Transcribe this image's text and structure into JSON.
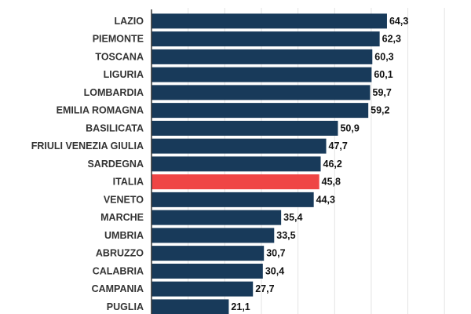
{
  "colors": {
    "bar": "#183a5a",
    "highlight": "#ef4545"
  },
  "chart_data": {
    "type": "bar",
    "orientation": "horizontal",
    "title": "",
    "xlabel": "",
    "ylabel": "",
    "xlim": [
      0,
      80
    ],
    "grid": true,
    "decimal_separator": ",",
    "highlight_category": "ITALIA",
    "categories": [
      "LAZIO",
      "PIEMONTE",
      "TOSCANA",
      "LIGURIA",
      "LOMBARDIA",
      "EMILIA ROMAGNA",
      "BASILICATA",
      "FRIULI VENEZIA GIULIA",
      "SARDEGNA",
      "ITALIA",
      "VENETO",
      "MARCHE",
      "UMBRIA",
      "ABRUZZO",
      "CALABRIA",
      "CAMPANIA",
      "PUGLIA"
    ],
    "values": [
      64.3,
      62.3,
      60.3,
      60.1,
      59.7,
      59.2,
      50.9,
      47.7,
      46.2,
      45.8,
      44.3,
      35.4,
      33.5,
      30.7,
      30.4,
      27.7,
      21.1
    ],
    "value_labels": [
      "64,3",
      "62,3",
      "60,3",
      "60,1",
      "59,7",
      "59,2",
      "50,9",
      "47,7",
      "46,2",
      "45,8",
      "44,3",
      "35,4",
      "33,5",
      "30,7",
      "30,4",
      "27,7",
      "21,1"
    ]
  }
}
